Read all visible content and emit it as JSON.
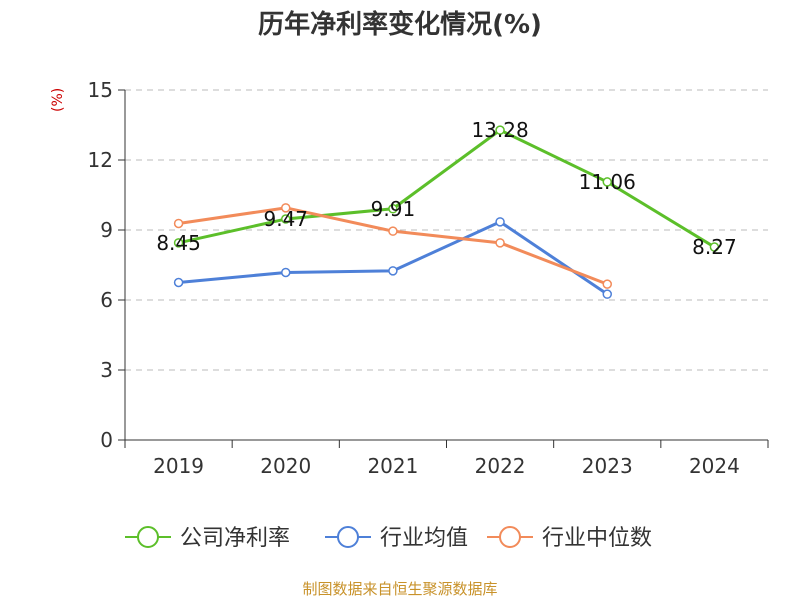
{
  "title": "历年净利率变化情况(%)",
  "unit_label": "(%)",
  "source": "制图数据来自恒生聚源数据库",
  "colors": {
    "company": "#5cbf2a",
    "industry_avg": "#4e80d8",
    "industry_median": "#f28b5a",
    "grid": "#bbbbbb",
    "axis": "#333333"
  },
  "chart_data": {
    "type": "line",
    "title": "历年净利率变化情况(%)",
    "ylabel": "(%)",
    "xlabel": "",
    "categories": [
      "2019",
      "2020",
      "2021",
      "2022",
      "2023",
      "2024"
    ],
    "ylim": [
      0,
      15
    ],
    "yticks": [
      0,
      3,
      6,
      9,
      12,
      15
    ],
    "grid": "horizontal dashed",
    "legend_position": "bottom",
    "series": [
      {
        "name": "公司净利率",
        "values": [
          8.45,
          9.47,
          9.91,
          13.28,
          11.06,
          8.27
        ],
        "labeled": true
      },
      {
        "name": "行业均值",
        "values": [
          6.75,
          7.18,
          7.25,
          9.35,
          6.25,
          null
        ],
        "labeled": false
      },
      {
        "name": "行业中位数",
        "values": [
          9.28,
          9.95,
          8.95,
          8.45,
          6.68,
          null
        ],
        "labeled": false
      }
    ],
    "data_labels": [
      "8.45",
      "9.47",
      "9.91",
      "13.28",
      "11.06",
      "8.27"
    ]
  }
}
